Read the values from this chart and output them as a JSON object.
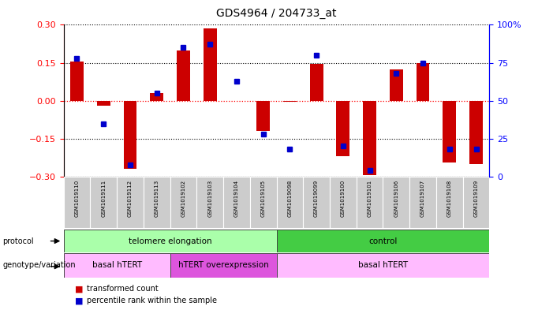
{
  "title": "GDS4964 / 204733_at",
  "samples": [
    "GSM1019110",
    "GSM1019111",
    "GSM1019112",
    "GSM1019113",
    "GSM1019102",
    "GSM1019103",
    "GSM1019104",
    "GSM1019105",
    "GSM1019098",
    "GSM1019099",
    "GSM1019100",
    "GSM1019101",
    "GSM1019106",
    "GSM1019107",
    "GSM1019108",
    "GSM1019109"
  ],
  "red_bars": [
    0.155,
    -0.02,
    -0.27,
    0.03,
    0.2,
    0.285,
    0.0,
    -0.12,
    -0.005,
    0.145,
    -0.22,
    -0.295,
    0.125,
    0.15,
    -0.245,
    -0.25
  ],
  "blue_dots": [
    78,
    35,
    8,
    55,
    85,
    87,
    63,
    28,
    18,
    80,
    20,
    4,
    68,
    75,
    18,
    18
  ],
  "ylim_left": [
    -0.3,
    0.3
  ],
  "ylim_right": [
    0,
    100
  ],
  "yticks_left": [
    -0.3,
    -0.15,
    0.0,
    0.15,
    0.3
  ],
  "yticks_right": [
    0,
    25,
    50,
    75,
    100
  ],
  "protocol_groups": [
    {
      "label": "telomere elongation",
      "start": 0,
      "end": 7
    },
    {
      "label": "control",
      "start": 8,
      "end": 15
    }
  ],
  "protocol_colors": [
    "#aaffaa",
    "#44cc44"
  ],
  "genotype_groups": [
    {
      "label": "basal hTERT",
      "start": 0,
      "end": 3
    },
    {
      "label": "hTERT overexpression",
      "start": 4,
      "end": 7
    },
    {
      "label": "basal hTERT",
      "start": 8,
      "end": 15
    }
  ],
  "genotype_colors": [
    "#ffbbff",
    "#dd55dd",
    "#ffbbff"
  ],
  "bar_color": "#cc0000",
  "dot_color": "#0000cc"
}
